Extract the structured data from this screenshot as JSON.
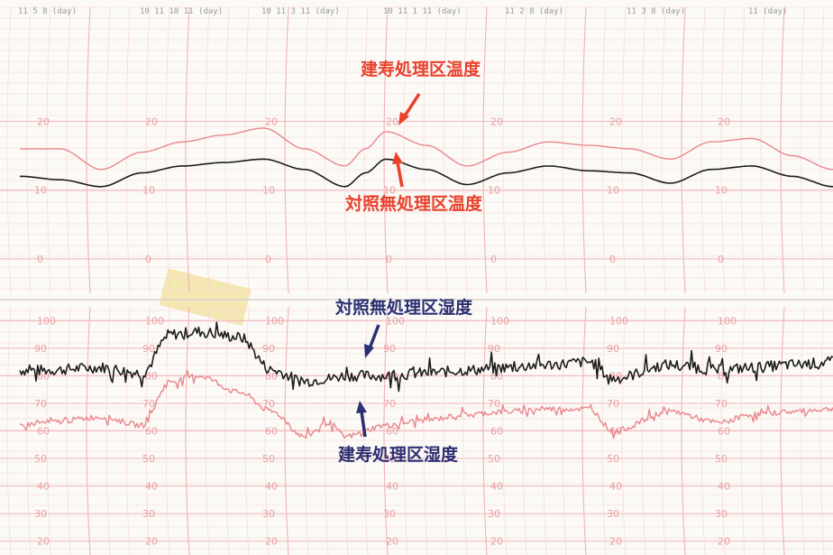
{
  "colors": {
    "paper": "#fbfaf6",
    "grid": "#f0b3b8",
    "grid_minor": "#f6d3d5",
    "tick_label": "#e8a0a6",
    "treated_trace": "#e9868c",
    "control_trace": "#1c1c1c",
    "temp_annotation": "#e8412c",
    "humidity_annotation": "#2b2f72",
    "highlight": "#efd77a"
  },
  "header": {
    "dates": [
      "11 5 8 (day)",
      "10 11 10 11 (day)",
      "10 11 3 11 (day)",
      "10 11 1 11 (day)",
      "11 2 8 (day)",
      "11 3 8 (day)",
      "11 (day)"
    ]
  },
  "chart_data": [
    {
      "type": "line",
      "panel": "temperature",
      "tick_labels": [
        "20",
        "10",
        "0"
      ],
      "series": [
        {
          "name": "建寿処理区温度",
          "color": "#e9868c",
          "x": [
            0,
            0.05,
            0.1,
            0.15,
            0.2,
            0.25,
            0.3,
            0.35,
            0.4,
            0.425,
            0.45,
            0.5,
            0.55,
            0.6,
            0.65,
            0.7,
            0.75,
            0.8,
            0.85,
            0.9,
            0.95,
            1.0
          ],
          "y": [
            16,
            16,
            13,
            15.5,
            17,
            18,
            19,
            16,
            13.5,
            16,
            18.5,
            16.5,
            13.5,
            15.5,
            17,
            16.5,
            16,
            14.5,
            17,
            17.5,
            15,
            13
          ]
        },
        {
          "name": "対照無処理区温度",
          "color": "#1c1c1c",
          "x": [
            0,
            0.05,
            0.1,
            0.15,
            0.2,
            0.25,
            0.3,
            0.35,
            0.4,
            0.425,
            0.45,
            0.5,
            0.55,
            0.6,
            0.65,
            0.7,
            0.75,
            0.8,
            0.85,
            0.9,
            0.95,
            1.0
          ],
          "y": [
            12,
            11.5,
            10.5,
            12.5,
            13.5,
            14,
            14.5,
            13,
            10.5,
            12.5,
            14.5,
            13,
            10.8,
            12.5,
            13.5,
            12.8,
            12.5,
            11,
            13,
            13.5,
            12,
            10.5
          ]
        }
      ],
      "annotations": [
        {
          "text": "建寿処理区温度",
          "target": "red"
        },
        {
          "text": "対照無処理区温度",
          "target": "black"
        }
      ]
    },
    {
      "type": "line",
      "panel": "humidity",
      "tick_labels": [
        "100",
        "90",
        "80",
        "70",
        "60",
        "50",
        "40",
        "30",
        "20"
      ],
      "series": [
        {
          "name": "対照無処理区湿度",
          "color": "#1c1c1c",
          "x": [
            0,
            0.03,
            0.1,
            0.15,
            0.185,
            0.22,
            0.27,
            0.31,
            0.35,
            0.38,
            0.4,
            0.45,
            0.5,
            0.55,
            0.6,
            0.65,
            0.7,
            0.73,
            0.8,
            0.86,
            0.9,
            0.95,
            1.0
          ],
          "y": [
            82,
            82,
            83,
            81,
            95,
            96,
            94,
            82,
            78,
            79,
            80,
            80,
            81,
            82,
            83,
            84,
            85,
            79,
            84,
            82,
            83,
            84,
            85
          ],
          "noise": 4
        },
        {
          "name": "建寿処理区湿度",
          "color": "#e9868c",
          "x": [
            0,
            0.03,
            0.1,
            0.15,
            0.185,
            0.22,
            0.27,
            0.31,
            0.35,
            0.38,
            0.4,
            0.45,
            0.5,
            0.55,
            0.6,
            0.65,
            0.7,
            0.73,
            0.8,
            0.86,
            0.9,
            0.95,
            1.0
          ],
          "y": [
            62,
            63,
            65,
            62,
            78,
            80,
            74,
            67,
            58,
            63,
            58,
            62,
            64,
            66,
            67,
            68,
            68,
            60,
            67,
            63,
            66,
            67,
            68
          ],
          "noise": 2
        }
      ],
      "annotations": [
        {
          "text": "対照無処理区湿度",
          "target": "black"
        },
        {
          "text": "建寿処理区湿度",
          "target": "red"
        }
      ]
    }
  ]
}
